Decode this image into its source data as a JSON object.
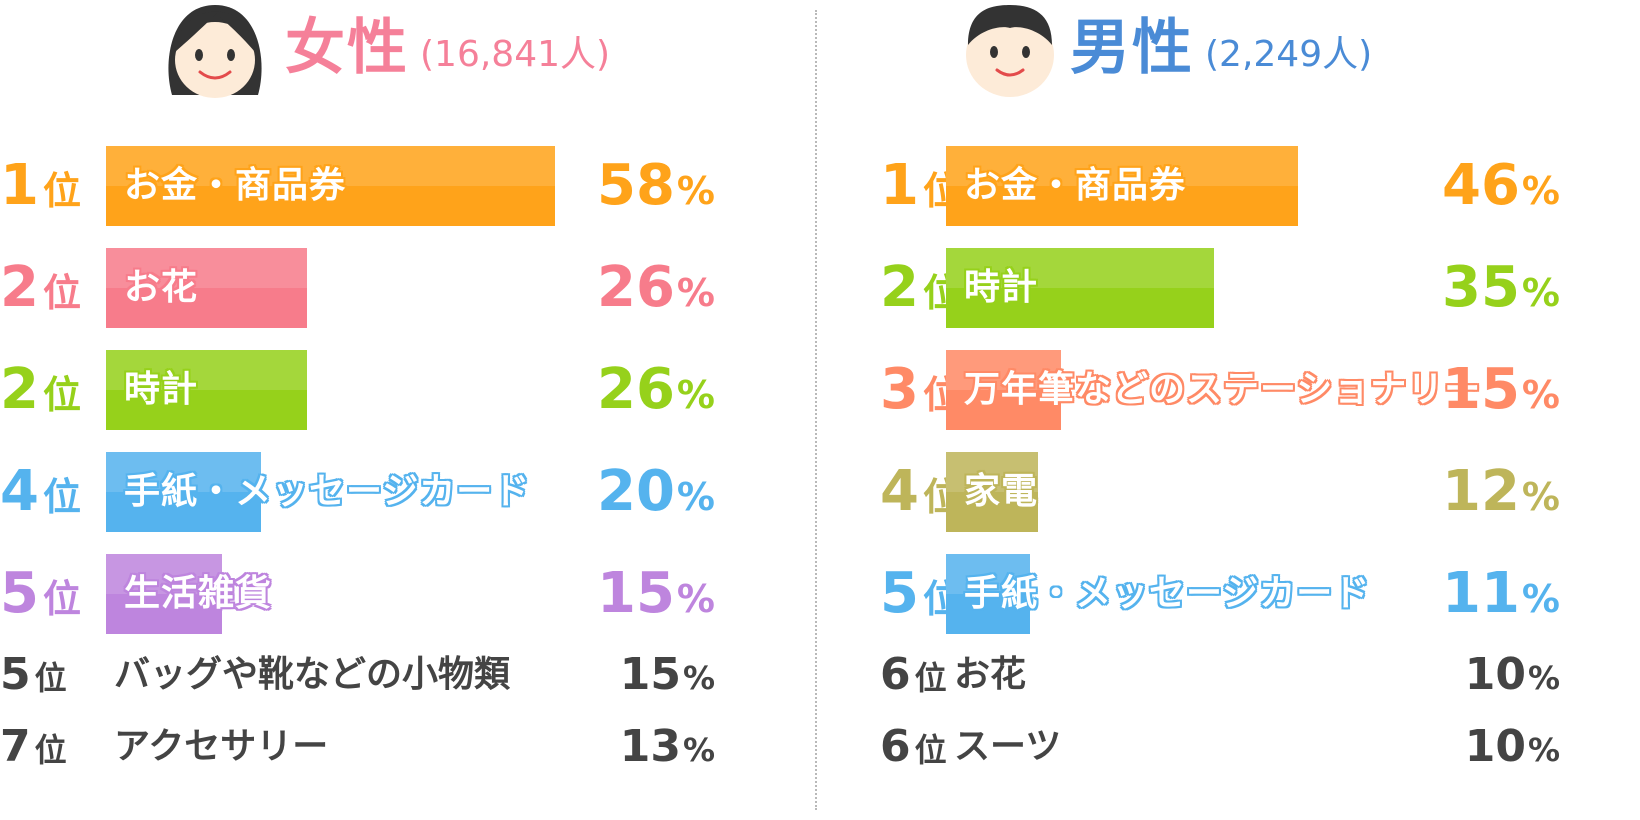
{
  "colors": {
    "orange": "#FFA31A",
    "pink": "#F77C8B",
    "green": "#96D11B",
    "blue": "#55B3EE",
    "purple": "#BE85DE",
    "salmon": "#FF8A66",
    "olive": "#BEB55A",
    "female_title": "#F58099",
    "male_title": "#4A8BD6",
    "gray_text": "#444444"
  },
  "female": {
    "title": "女性",
    "count": "(16,841人)",
    "avatar": "female-face-icon"
  },
  "male": {
    "title": "男性",
    "count": "(2,249人)",
    "avatar": "male-face-icon"
  },
  "chart_data": [
    {
      "type": "bar",
      "title": "女性(16,841人)",
      "rank_unit": "位",
      "pct_unit": "%",
      "categories": [
        "お金・商品券",
        "お花",
        "時計",
        "手紙・メッセージカード",
        "生活雑貨",
        "バッグや靴などの小物類",
        "アクセサリー"
      ],
      "ranks": [
        "1",
        "2",
        "2",
        "4",
        "5",
        "5",
        "7"
      ],
      "values": [
        58,
        26,
        26,
        20,
        15,
        15,
        13
      ],
      "bar_colors": [
        "#FFA31A",
        "#F77C8B",
        "#96D11B",
        "#55B3EE",
        "#BE85DE",
        "#444444",
        "#444444"
      ],
      "rows_with_bars": 5
    },
    {
      "type": "bar",
      "title": "男性(2,249人)",
      "rank_unit": "位",
      "pct_unit": "%",
      "categories": [
        "お金・商品券",
        "時計",
        "万年筆などのステーショナリー",
        "家電",
        "手紙・メッセージカード",
        "お花",
        "スーツ"
      ],
      "ranks": [
        "1",
        "2",
        "3",
        "4",
        "5",
        "6",
        "6"
      ],
      "values": [
        46,
        35,
        15,
        12,
        11,
        10,
        10
      ],
      "bar_colors": [
        "#FFA31A",
        "#96D11B",
        "#FF8A66",
        "#BEB55A",
        "#55B3EE",
        "#444444",
        "#444444"
      ],
      "rows_with_bars": 5
    }
  ]
}
